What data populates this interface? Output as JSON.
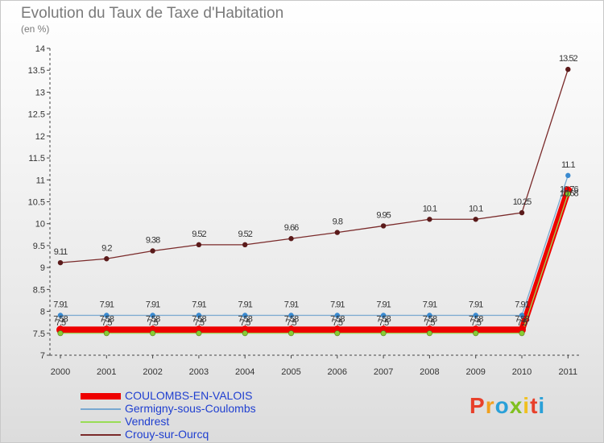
{
  "title": "Evolution du Taux de Taxe d'Habitation",
  "subtitle": "(en %)",
  "brand": {
    "letters": [
      "P",
      "r",
      "o",
      "x",
      "i",
      "t",
      "i"
    ],
    "colors": [
      "#e8402a",
      "#f0a01e",
      "#2aa0d8",
      "#80c020",
      "#f0c020",
      "#e8402a",
      "#2aa0d8"
    ]
  },
  "chart_data": {
    "type": "line",
    "x": [
      "2000",
      "2001",
      "2002",
      "2003",
      "2004",
      "2005",
      "2006",
      "2007",
      "2008",
      "2009",
      "2010",
      "2011"
    ],
    "ylim": [
      7,
      14
    ],
    "yticks": [
      "7",
      "7.5",
      "8",
      "8.5",
      "9",
      "9.5",
      "10",
      "10.5",
      "11",
      "11.5",
      "12",
      "12.5",
      "13",
      "13.5",
      "14"
    ],
    "grid": false,
    "legend_position": "bottom-left",
    "series": [
      {
        "name": "Crouy-sur-Ourcq",
        "color": "#7a2a2a",
        "values": [
          9.11,
          9.2,
          9.38,
          9.52,
          9.52,
          9.66,
          9.8,
          9.95,
          10.1,
          10.1,
          10.25,
          13.52
        ],
        "labels": [
          "9.11",
          "9.2",
          "9.38",
          "9.52",
          "9.52",
          "9.66",
          "9.8",
          "9.95",
          "10.1",
          "10.1",
          "10.25",
          "13.52"
        ]
      },
      {
        "name": "Germigny-sous-Coulombs",
        "color": "#78a8d0",
        "values": [
          7.91,
          7.91,
          7.91,
          7.91,
          7.91,
          7.91,
          7.91,
          7.91,
          7.91,
          7.91,
          7.91,
          11.1
        ],
        "labels": [
          "7.91",
          "7.91",
          "7.91",
          "7.91",
          "7.91",
          "7.91",
          "7.91",
          "7.91",
          "7.91",
          "7.91",
          "7.91",
          "11.1"
        ]
      },
      {
        "name": "Vendrest",
        "color": "#99dd55",
        "values": [
          7.5,
          7.5,
          7.5,
          7.5,
          7.5,
          7.5,
          7.5,
          7.5,
          7.5,
          7.5,
          7.5,
          10.68
        ],
        "labels": [
          "7.5",
          "7.5",
          "7.5",
          "7.5",
          "7.5",
          "7.5",
          "7.5",
          "7.5",
          "7.5",
          "7.5",
          "7.5",
          "10.68"
        ]
      },
      {
        "name": "COULOMBS-EN-VALOIS",
        "color": "#ee0000",
        "values": [
          7.58,
          7.58,
          7.58,
          7.58,
          7.58,
          7.58,
          7.58,
          7.58,
          7.58,
          7.58,
          7.58,
          10.76
        ],
        "labels": [
          "7.58",
          "7.58",
          "7.58",
          "7.58",
          "7.58",
          "7.58",
          "7.58",
          "7.58",
          "7.58",
          "7.58",
          "7.58",
          "10.76"
        ]
      }
    ],
    "legend": [
      {
        "name": "COULOMBS-EN-VALOIS",
        "color": "#ee0000",
        "text_color": "#1f3fd0"
      },
      {
        "name": "Germigny-sous-Coulombs",
        "color": "#78a8d0",
        "text_color": "#1f3fd0"
      },
      {
        "name": "Vendrest",
        "color": "#99dd55",
        "text_color": "#1f3fd0"
      },
      {
        "name": "Crouy-sur-Ourcq",
        "color": "#7a2a2a",
        "text_color": "#1f3fd0"
      }
    ]
  }
}
